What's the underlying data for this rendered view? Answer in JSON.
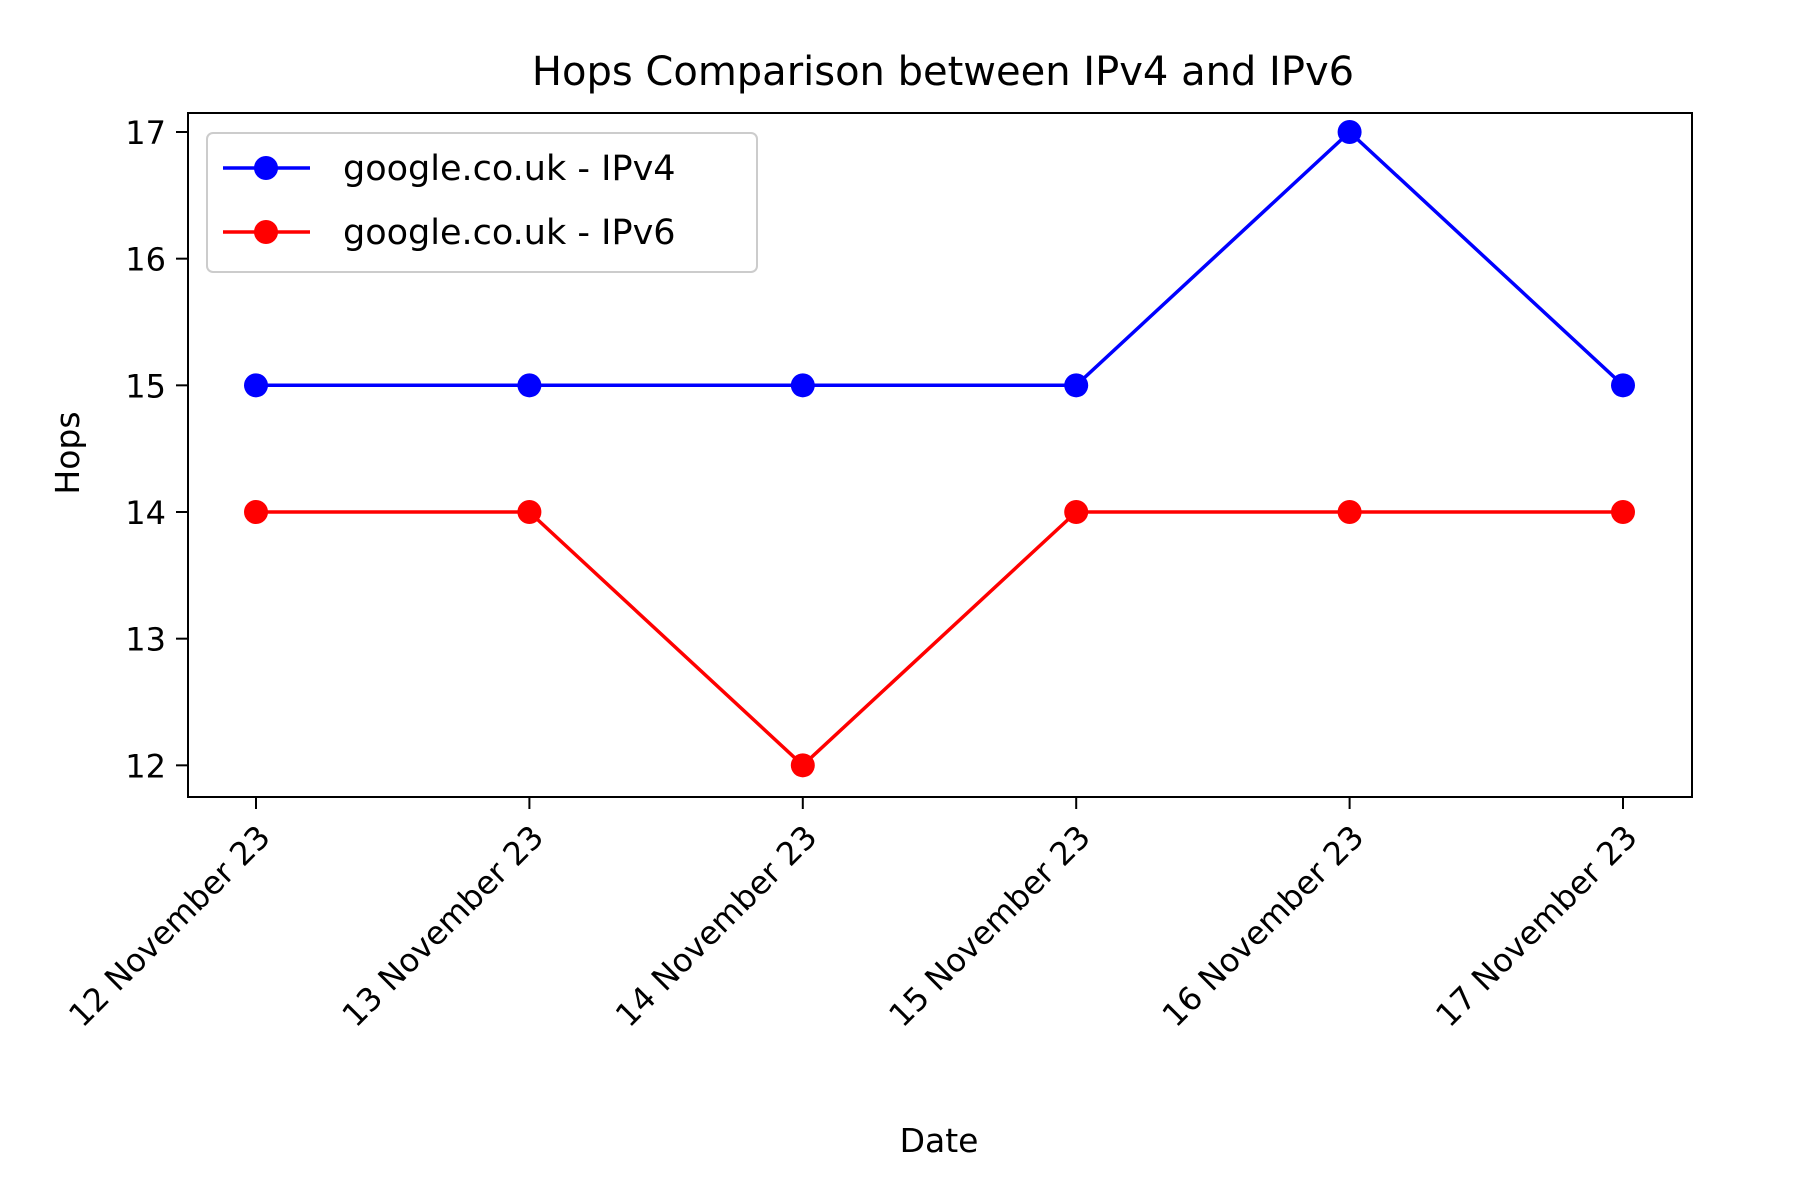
{
  "chart_data": {
    "type": "line",
    "title": "Hops Comparison between IPv4 and IPv6",
    "xlabel": "Date",
    "ylabel": "Hops",
    "categories": [
      "12 November 23",
      "13 November 23",
      "14 November 23",
      "15 November 23",
      "16 November 23",
      "17 November 23"
    ],
    "y_ticks": [
      "12",
      "13",
      "14",
      "15",
      "16",
      "17"
    ],
    "ylim": [
      11.75,
      17.15
    ],
    "grid": false,
    "legend_position": "upper-left",
    "series": [
      {
        "name": "google.co.uk - IPv4",
        "color": "#0000ff",
        "marker": "circle",
        "values": [
          15,
          15,
          15,
          15,
          17,
          15
        ]
      },
      {
        "name": "google.co.uk - IPv6",
        "color": "#ff0000",
        "marker": "circle",
        "values": [
          14,
          14,
          12,
          14,
          14,
          14
        ]
      }
    ]
  }
}
